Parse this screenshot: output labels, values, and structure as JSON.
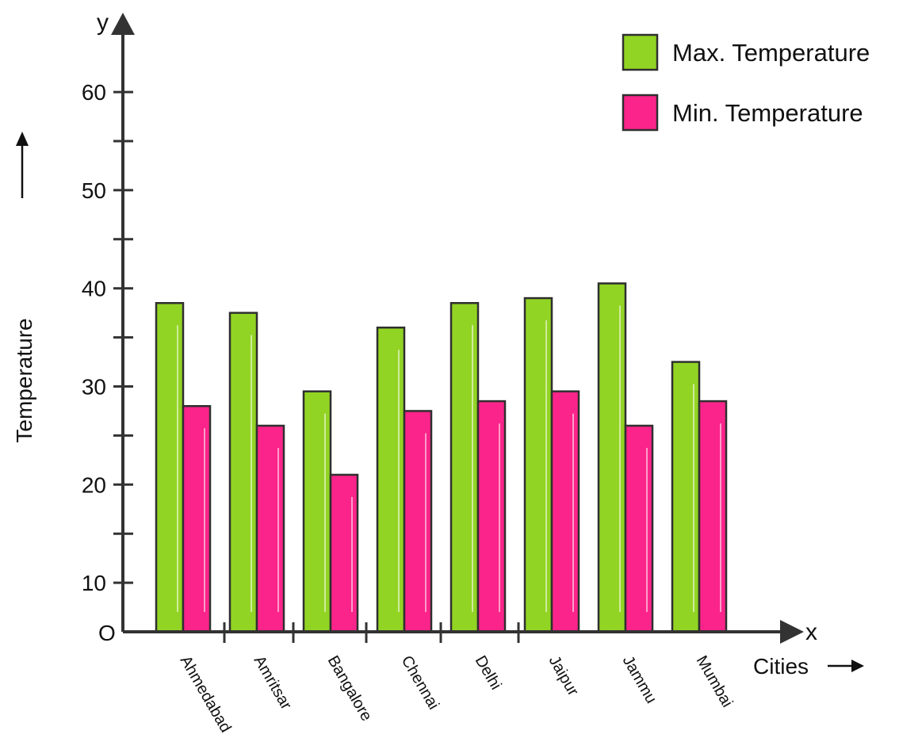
{
  "chart_data": {
    "type": "bar",
    "categories": [
      "Ahmedabad",
      "Amritsar",
      "Bangalore",
      "Chennai",
      "Delhi",
      "Jaipur",
      "Jammu",
      "Mumbai"
    ],
    "series": [
      {
        "name": "Max. Temperature",
        "color": "#92d424",
        "values": [
          38.5,
          37.5,
          29.5,
          36,
          38.5,
          39,
          40.5,
          32.5
        ]
      },
      {
        "name": "Min. Temperature",
        "color": "#fb248a",
        "values": [
          28,
          26,
          21,
          27.5,
          28.5,
          29.5,
          26,
          28.5
        ]
      }
    ],
    "xlabel": "Cities",
    "ylabel": "Temperature",
    "x_axis_letter": "x",
    "y_axis_letter": "y",
    "origin_label": "O",
    "ylim": [
      5,
      65
    ],
    "yticks": [
      10,
      20,
      30,
      40,
      50,
      60
    ],
    "grid": false,
    "legend_position": "top-right"
  }
}
